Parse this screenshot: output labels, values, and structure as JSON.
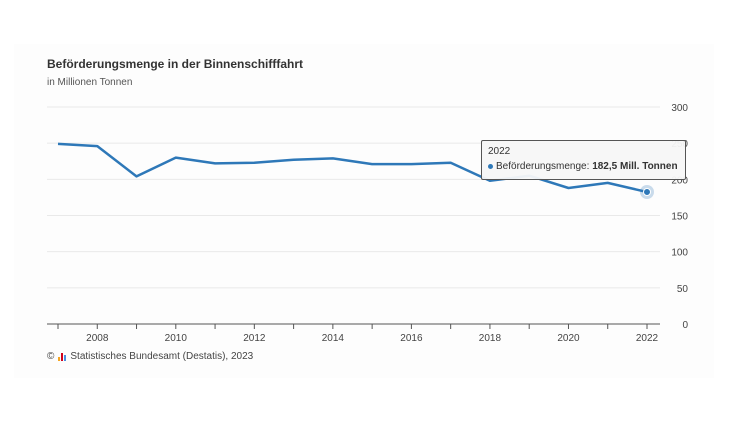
{
  "header": {
    "title": "Beförderungsmenge in der Binnenschifffahrt",
    "subtitle": "in Millionen Tonnen"
  },
  "source": {
    "copyright": "©",
    "text": "Statistisches Bundesamt (Destatis), 2023"
  },
  "tooltip": {
    "year": "2022",
    "label": "Beförderungsmenge:",
    "value": "182,5 Mill. Tonnen"
  },
  "colors": {
    "line": "#2e78b8",
    "grid": "#e9e9e9",
    "axis": "#555555",
    "logo": [
      "#f5a623",
      "#d0021b",
      "#4a90e2"
    ]
  },
  "chart_data": {
    "type": "line",
    "title": "Beförderungsmenge in der Binnenschifffahrt",
    "subtitle": "in Millionen Tonnen",
    "x": [
      2007,
      2008,
      2009,
      2010,
      2011,
      2012,
      2013,
      2014,
      2015,
      2016,
      2017,
      2018,
      2019,
      2020,
      2021,
      2022
    ],
    "series": [
      {
        "name": "Beförderungsmenge",
        "values": [
          249,
          246,
          204,
          230,
          222,
          223,
          227,
          229,
          221,
          221,
          223,
          198,
          205,
          188,
          195,
          182.5
        ]
      }
    ],
    "x_ticks": [
      2008,
      2010,
      2012,
      2014,
      2016,
      2018,
      2020,
      2022
    ],
    "y_ticks": [
      0,
      50,
      100,
      150,
      200,
      250,
      300
    ],
    "xlim": [
      2007,
      2022
    ],
    "ylim": [
      0,
      300
    ],
    "y_axis_side": "right",
    "grid": true,
    "legend": "none",
    "highlighted_point": {
      "x": 2022,
      "y": 182.5
    }
  }
}
